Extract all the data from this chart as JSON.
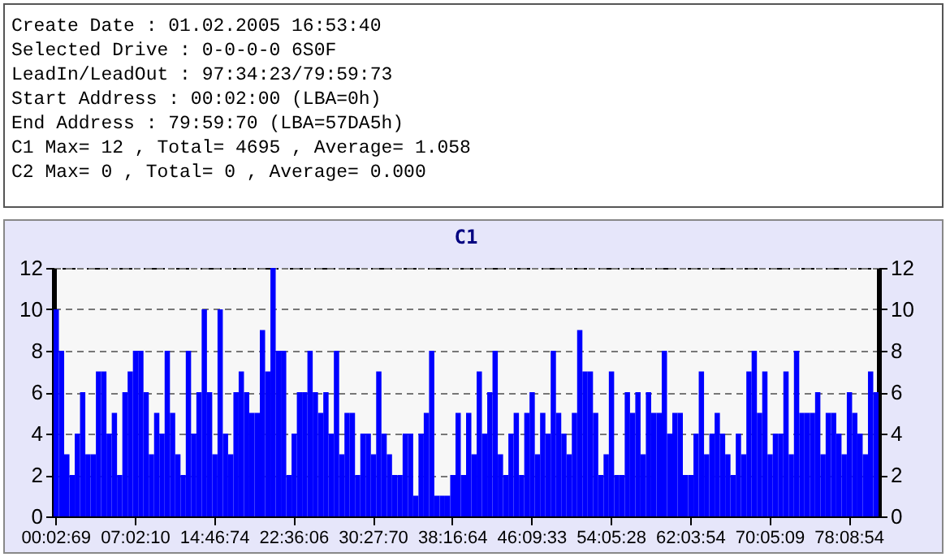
{
  "chart_data": {
    "type": "bar",
    "title": "C1",
    "annotations": [
      "Create Date : 01.02.2005 16:53:40",
      "Selected Drive : 0-0-0-0 6S0F",
      "LeadIn/LeadOut : 97:34:23/79:59:73",
      "Start Address : 00:02:00 (LBA=0h)",
      "End Address : 79:59:70 (LBA=57DA5h)",
      "C1 Max= 12 , Total= 4695 , Average= 1.058",
      "C2 Max= 0 , Total= 0 , Average= 0.000"
    ],
    "categories": [
      "00:02:69",
      null,
      null,
      null,
      null,
      null,
      null,
      null,
      null,
      null,
      null,
      null,
      null,
      null,
      null,
      "07:02:10",
      null,
      null,
      null,
      null,
      null,
      null,
      null,
      null,
      null,
      null,
      null,
      null,
      null,
      null,
      "14:46:74",
      null,
      null,
      null,
      null,
      null,
      null,
      null,
      null,
      null,
      null,
      null,
      null,
      null,
      null,
      "22:36:06",
      null,
      null,
      null,
      null,
      null,
      null,
      null,
      null,
      null,
      null,
      null,
      null,
      null,
      null,
      "30:27:70",
      null,
      null,
      null,
      null,
      null,
      null,
      null,
      null,
      null,
      null,
      null,
      null,
      null,
      null,
      "38:16:64",
      null,
      null,
      null,
      null,
      null,
      null,
      null,
      null,
      null,
      null,
      null,
      null,
      null,
      null,
      "46:09:33",
      null,
      null,
      null,
      null,
      null,
      null,
      null,
      null,
      null,
      null,
      null,
      null,
      null,
      null,
      "54:05:28",
      null,
      null,
      null,
      null,
      null,
      null,
      null,
      null,
      null,
      null,
      null,
      null,
      null,
      null,
      "62:03:54",
      null,
      null,
      null,
      null,
      null,
      null,
      null,
      null,
      null,
      null,
      null,
      null,
      null,
      null,
      "70:05:09",
      null,
      null,
      null,
      null,
      null,
      null,
      null,
      null,
      null,
      null,
      null,
      null,
      null,
      null,
      "78:08:54",
      null,
      null,
      null,
      null,
      null
    ],
    "values": [
      10,
      8,
      3,
      2,
      4,
      6,
      3,
      3,
      7,
      7,
      4,
      5,
      2,
      6,
      7,
      8,
      8,
      6,
      3,
      5,
      4,
      8,
      5,
      3,
      2,
      8,
      4,
      6,
      10,
      6,
      3,
      10,
      4,
      3,
      6,
      7,
      6,
      5,
      5,
      9,
      7,
      12,
      8,
      8,
      2,
      4,
      6,
      6,
      8,
      6,
      5,
      6,
      4,
      8,
      3,
      5,
      5,
      2,
      4,
      4,
      3,
      7,
      4,
      3,
      2,
      2,
      4,
      4,
      1,
      4,
      5,
      8,
      1,
      1,
      1,
      2,
      5,
      2,
      5,
      3,
      7,
      4,
      6,
      8,
      3,
      2,
      4,
      5,
      2,
      5,
      6,
      3,
      5,
      4,
      8,
      5,
      4,
      3,
      5,
      9,
      7,
      7,
      5,
      2,
      3,
      7,
      2,
      2,
      6,
      5,
      6,
      3,
      6,
      5,
      5,
      8,
      4,
      5,
      5,
      2,
      2,
      4,
      7,
      3,
      4,
      5,
      4,
      3,
      2,
      4,
      3,
      7,
      8,
      5,
      7,
      3,
      4,
      4,
      7,
      3,
      8,
      5,
      5,
      5,
      6,
      3,
      5,
      5,
      4,
      3,
      6,
      5,
      4,
      3,
      7,
      6
    ],
    "color": "#0000ff",
    "ylim": [
      0,
      12
    ],
    "yticks": [
      0,
      2,
      4,
      6,
      8,
      10,
      12
    ],
    "y2lim": [
      0,
      12
    ],
    "y2ticks": [
      0,
      2,
      4,
      6,
      8,
      10,
      12
    ],
    "grid": "y"
  }
}
